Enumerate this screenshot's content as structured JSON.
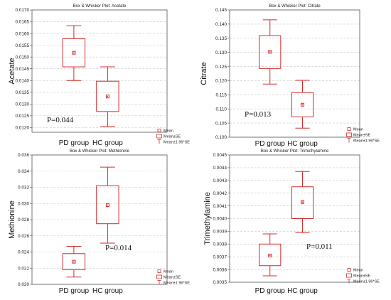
{
  "colors": {
    "mark": "#d22c2c",
    "grid": "#c8c8c8",
    "frame": "#555555"
  },
  "legend": {
    "mean": "Mean",
    "se": "Mean±SE",
    "ci": "Mean±1.96*SE"
  },
  "chart_data": [
    {
      "type": "box",
      "title": "Box & Whisker Plot: Acetate",
      "ylabel": "Acetate",
      "categories": [
        "PD group",
        "HC group"
      ],
      "ylim": [
        0.0118,
        0.017
      ],
      "yticks": [
        "0.0120",
        "0.0125",
        "0.0130",
        "0.0135",
        "0.0140",
        "0.0145",
        "0.0150",
        "0.0155",
        "0.0160",
        "0.0165",
        "0.0170"
      ],
      "series": [
        {
          "category": "PD group",
          "mean": 0.01518,
          "se_low": 0.01458,
          "se_high": 0.01578,
          "ci_low": 0.014,
          "ci_high": 0.01633
        },
        {
          "category": "HC group",
          "mean": 0.01332,
          "se_low": 0.01268,
          "se_high": 0.01397,
          "ci_low": 0.01204,
          "ci_high": 0.01458
        }
      ],
      "annotation": "P=0.044"
    },
    {
      "type": "box",
      "title": "Box & Whisker Plot: Citrate",
      "ylabel": "Citrate",
      "categories": [
        "PD group",
        "HC group"
      ],
      "ylim": [
        0.1,
        0.145
      ],
      "yticks": [
        "0.100",
        "0.105",
        "0.110",
        "0.115",
        "0.120",
        "0.125",
        "0.130",
        "0.135",
        "0.140",
        "0.145"
      ],
      "series": [
        {
          "category": "PD group",
          "mean": 0.1302,
          "se_low": 0.1243,
          "se_high": 0.1359,
          "ci_low": 0.1188,
          "ci_high": 0.1415
        },
        {
          "category": "HC group",
          "mean": 0.1115,
          "se_low": 0.1072,
          "se_high": 0.1158,
          "ci_low": 0.1032,
          "ci_high": 0.1201
        }
      ],
      "annotation": "P=0.013"
    },
    {
      "type": "box",
      "title": "Box & Whisker Plot: Methionine",
      "ylabel": "Methionine",
      "categories": [
        "PD group",
        "HC group"
      ],
      "ylim": [
        0.02,
        0.036
      ],
      "yticks": [
        "0.020",
        "0.022",
        "0.024",
        "0.026",
        "0.028",
        "0.030",
        "0.032",
        "0.034",
        "0.036"
      ],
      "series": [
        {
          "category": "PD group",
          "mean": 0.0228,
          "se_low": 0.0218,
          "se_high": 0.0238,
          "ci_low": 0.0209,
          "ci_high": 0.0247
        },
        {
          "category": "HC group",
          "mean": 0.0298,
          "se_low": 0.0275,
          "se_high": 0.0322,
          "ci_low": 0.0251,
          "ci_high": 0.0345
        }
      ],
      "annotation": "P=0.014"
    },
    {
      "type": "box",
      "title": "Box & Whisker Plot: Trimethylamine",
      "ylabel": "Trimethylamine",
      "categories": [
        "PD group",
        "HC group"
      ],
      "ylim": [
        0.0035,
        0.0045
      ],
      "yticks": [
        "0.0035",
        "0.0036",
        "0.0037",
        "0.0038",
        "0.0039",
        "0.0040",
        "0.0041",
        "0.0042",
        "0.0043",
        "0.0044",
        "0.0045"
      ],
      "series": [
        {
          "category": "PD group",
          "mean": 0.00371,
          "se_low": 0.00363,
          "se_high": 0.0038,
          "ci_low": 0.00355,
          "ci_high": 0.00388
        },
        {
          "category": "HC group",
          "mean": 0.00413,
          "se_low": 0.004,
          "se_high": 0.00425,
          "ci_low": 0.00389,
          "ci_high": 0.00437
        }
      ],
      "annotation": "P=0.011"
    }
  ]
}
